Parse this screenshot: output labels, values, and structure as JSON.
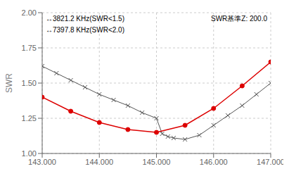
{
  "chart_data": {
    "type": "line",
    "ylabel": "SWR",
    "annotations": [
      "↔3821.2 KHz(SWR<1.5)",
      "↔7397.8 KHz(SWR<2.0)",
      "SWR基準Z: 200.0"
    ],
    "xlim": [
      143000,
      147000
    ],
    "ylim": [
      1.0,
      2.0
    ],
    "xticks": [
      {
        "value": 143000,
        "label": "143.000"
      },
      {
        "value": 144000,
        "label": "144.000"
      },
      {
        "value": 145000,
        "label": "145.000"
      },
      {
        "value": 146000,
        "label": "146.000"
      },
      {
        "value": 147000,
        "label": "147.000"
      }
    ],
    "yticks": [
      {
        "value": 1.0,
        "label": "1.00"
      },
      {
        "value": 1.25,
        "label": "1.25"
      },
      {
        "value": 1.5,
        "label": "1.50"
      },
      {
        "value": 1.75,
        "label": "1.75"
      },
      {
        "value": 2.0,
        "label": "2.00"
      }
    ],
    "grid": true,
    "series": [
      {
        "color": "#555555",
        "marker": "x",
        "x": [
          143000,
          143250,
          143500,
          143750,
          144000,
          144250,
          144500,
          144750,
          145000,
          145100,
          145200,
          145300,
          145500,
          145750,
          146000,
          146250,
          146500,
          146750,
          147000
        ],
        "values": [
          1.62,
          1.57,
          1.52,
          1.47,
          1.42,
          1.38,
          1.34,
          1.29,
          1.25,
          1.14,
          1.12,
          1.11,
          1.1,
          1.13,
          1.2,
          1.27,
          1.34,
          1.42,
          1.5
        ]
      },
      {
        "color": "#dd0000",
        "marker": "o",
        "x": [
          143000,
          143500,
          144000,
          144500,
          145000,
          145500,
          146000,
          146500,
          147000
        ],
        "values": [
          1.4,
          1.3,
          1.22,
          1.17,
          1.15,
          1.2,
          1.32,
          1.48,
          1.65
        ]
      }
    ]
  }
}
